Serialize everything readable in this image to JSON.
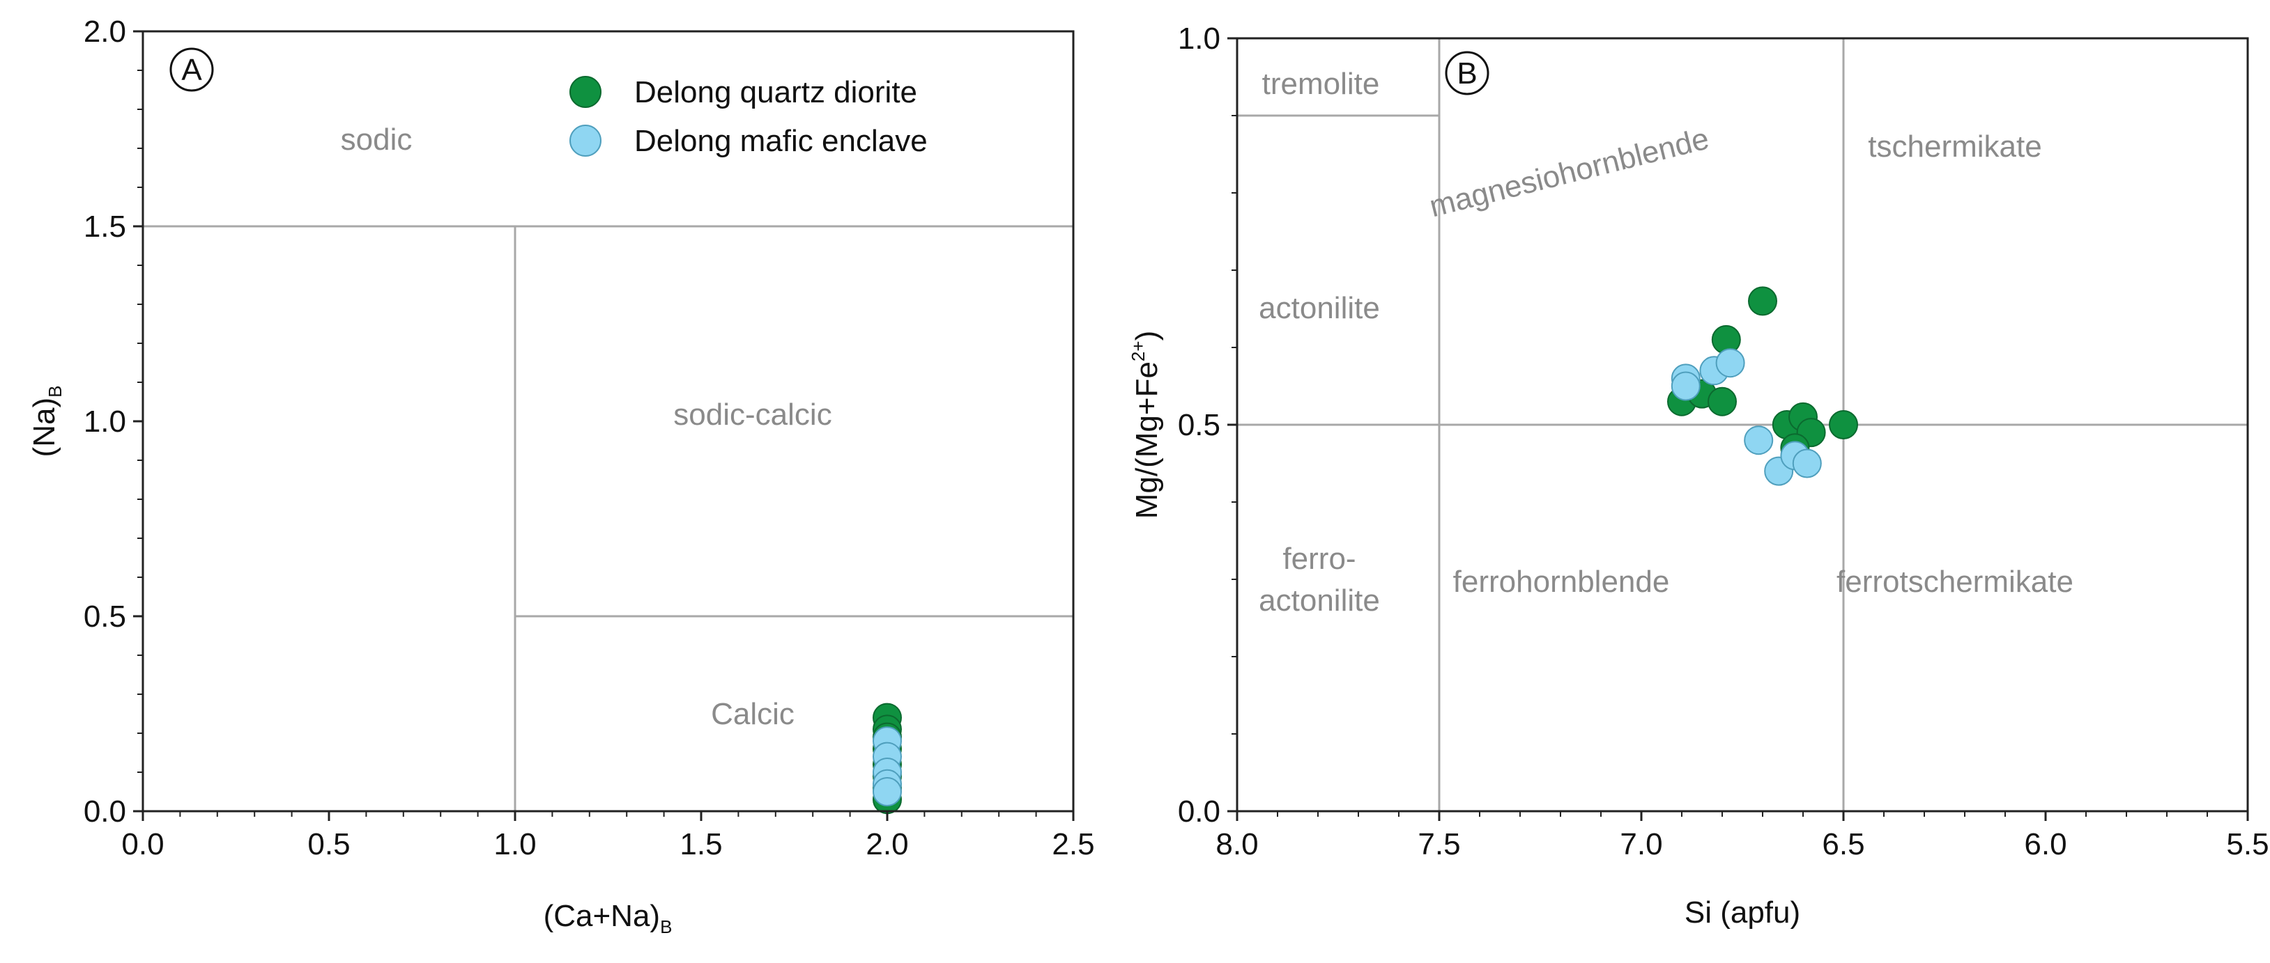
{
  "colors": {
    "quartz_diorite": "#0f9140",
    "mafic_enclave": "#8fd6f2",
    "boundary": "#a8a8a8",
    "field_label": "#8a8a8a",
    "frame": "#222222"
  },
  "chart_data": [
    {
      "type": "scatter",
      "panel": "A",
      "xlabel": "(Ca+Na)",
      "xlabel_sub": "B",
      "ylabel": "(Na)",
      "ylabel_sub": "B",
      "xlim": [
        0,
        2.5
      ],
      "ylim": [
        0,
        2.0
      ],
      "x_ticks": [
        "0.0",
        "0.5",
        "1.0",
        "1.5",
        "2.0",
        "2.5"
      ],
      "y_ticks": [
        "0.0",
        "0.5",
        "1.0",
        "1.5",
        "2.0"
      ],
      "grid": false,
      "legend_position": "top-right",
      "legend": [
        {
          "label": "Delong quartz diorite",
          "color": "#0f9140"
        },
        {
          "label": "Delong mafic enclave",
          "color": "#8fd6f2"
        }
      ],
      "fields": [
        "sodic",
        "sodic-calcic",
        "Calcic"
      ],
      "boundaries": [
        {
          "x1": 0,
          "y1": 1.5,
          "x2": 2.5,
          "y2": 1.5
        },
        {
          "x1": 1.0,
          "y1": 0,
          "x2": 1.0,
          "y2": 1.5
        },
        {
          "x1": 1.0,
          "y1": 0.5,
          "x2": 2.5,
          "y2": 0.5
        }
      ],
      "series": [
        {
          "name": "Delong quartz diorite",
          "points": [
            [
              2.0,
              0.24
            ],
            [
              2.0,
              0.21
            ],
            [
              2.0,
              0.19
            ],
            [
              2.0,
              0.16
            ],
            [
              2.0,
              0.12
            ],
            [
              2.0,
              0.09
            ],
            [
              2.0,
              0.06
            ],
            [
              2.0,
              0.03
            ]
          ]
        },
        {
          "name": "Delong mafic enclave",
          "points": [
            [
              2.0,
              0.18
            ],
            [
              2.0,
              0.14
            ],
            [
              2.0,
              0.1
            ],
            [
              2.0,
              0.07
            ],
            [
              2.0,
              0.05
            ]
          ]
        }
      ]
    },
    {
      "type": "scatter",
      "panel": "B",
      "xlabel": "Si (apfu)",
      "ylabel": "Mg/(Mg+Fe",
      "ylabel_sup": "2+",
      "ylabel_end": ")",
      "xlim": [
        8.0,
        5.5
      ],
      "ylim": [
        0,
        1.0
      ],
      "x_ticks": [
        "8.0",
        "7.5",
        "7.0",
        "6.5",
        "6.0",
        "5.5"
      ],
      "y_ticks": [
        "0.0",
        "0.5",
        "1.0"
      ],
      "grid": false,
      "fields": [
        "tremolite",
        "magnesiohornblende",
        "tschermikate",
        "actonilite",
        "ferro-",
        "actonilite",
        "ferrohornblende",
        "ferrotschermikate"
      ],
      "boundaries": [
        {
          "x1": 8.0,
          "y1": 0.5,
          "x2": 5.5,
          "y2": 0.5
        },
        {
          "x1": 7.5,
          "y1": 0,
          "x2": 7.5,
          "y2": 1.0
        },
        {
          "x1": 6.5,
          "y1": 0,
          "x2": 6.5,
          "y2": 1.0
        },
        {
          "x1": 8.0,
          "y1": 0.9,
          "x2": 7.5,
          "y2": 0.9
        }
      ],
      "series": [
        {
          "name": "Delong quartz diorite",
          "points": [
            [
              6.7,
              0.66
            ],
            [
              6.79,
              0.61
            ],
            [
              6.9,
              0.53
            ],
            [
              6.85,
              0.54
            ],
            [
              6.8,
              0.53
            ],
            [
              6.64,
              0.5
            ],
            [
              6.6,
              0.51
            ],
            [
              6.58,
              0.49
            ],
            [
              6.5,
              0.5
            ],
            [
              6.62,
              0.47
            ]
          ]
        },
        {
          "name": "Delong mafic enclave",
          "points": [
            [
              6.89,
              0.56
            ],
            [
              6.89,
              0.55
            ],
            [
              6.82,
              0.57
            ],
            [
              6.78,
              0.58
            ],
            [
              6.71,
              0.48
            ],
            [
              6.66,
              0.44
            ],
            [
              6.62,
              0.46
            ],
            [
              6.59,
              0.45
            ]
          ]
        }
      ]
    }
  ]
}
